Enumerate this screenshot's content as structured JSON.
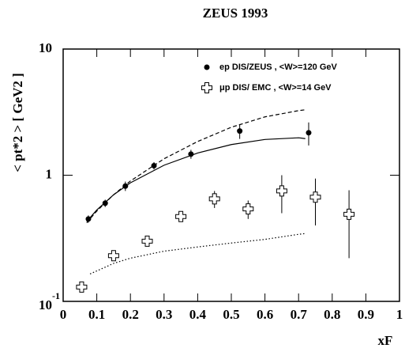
{
  "chart_data": {
    "type": "scatter",
    "title": "ZEUS 1993",
    "x_label": "xF",
    "y_label": "< pt*2 > [ GeV2 ]",
    "log_y": true,
    "xlim": [
      0,
      1
    ],
    "ylim": [
      0.1,
      10
    ],
    "xticks": [
      0,
      0.1,
      0.2,
      0.3,
      0.4,
      0.5,
      0.6,
      0.7,
      0.8,
      0.9,
      1
    ],
    "yticks": [
      {
        "value": 0.1,
        "label": "10",
        "exponent": "-1"
      },
      1,
      10
    ],
    "series": [
      {
        "name": "ep DIS/ZEUS , <W>=120 GeV",
        "marker": "filled-circle",
        "color": "#000000",
        "x": [
          0.075,
          0.125,
          0.185,
          0.27,
          0.38,
          0.525,
          0.73
        ],
        "values": [
          0.45,
          0.6,
          0.82,
          1.19,
          1.47,
          2.24,
          2.17
        ],
        "errors": [
          0.03,
          0.04,
          0.07,
          0.08,
          0.12,
          0.3,
          0.45
        ]
      },
      {
        "name": "μp DIS/ EMC , <W>=14 GeV",
        "marker": "open-cross",
        "color": "#000000",
        "x": [
          0.055,
          0.15,
          0.25,
          0.35,
          0.45,
          0.55,
          0.65,
          0.75,
          0.85
        ],
        "values": [
          0.13,
          0.23,
          0.3,
          0.47,
          0.65,
          0.54,
          0.75,
          0.67,
          0.49
        ],
        "errors": [
          0.01,
          0.015,
          0.02,
          0.03,
          0.1,
          0.09,
          0.25,
          0.27,
          0.27
        ]
      }
    ],
    "curves": [
      {
        "style": "solid",
        "x": [
          0.07,
          0.1,
          0.15,
          0.2,
          0.3,
          0.4,
          0.5,
          0.6,
          0.7,
          0.72
        ],
        "values": [
          0.43,
          0.53,
          0.7,
          0.87,
          1.2,
          1.5,
          1.75,
          1.92,
          1.98,
          1.95
        ]
      },
      {
        "style": "dashed",
        "x": [
          0.07,
          0.1,
          0.15,
          0.2,
          0.3,
          0.4,
          0.5,
          0.6,
          0.7,
          0.72
        ],
        "values": [
          0.42,
          0.52,
          0.7,
          0.9,
          1.35,
          1.85,
          2.4,
          2.9,
          3.25,
          3.3
        ]
      },
      {
        "style": "dotted",
        "x": [
          0.08,
          0.15,
          0.2,
          0.3,
          0.4,
          0.5,
          0.6,
          0.7,
          0.72
        ],
        "values": [
          0.165,
          0.2,
          0.22,
          0.25,
          0.27,
          0.29,
          0.31,
          0.34,
          0.345
        ]
      }
    ]
  }
}
